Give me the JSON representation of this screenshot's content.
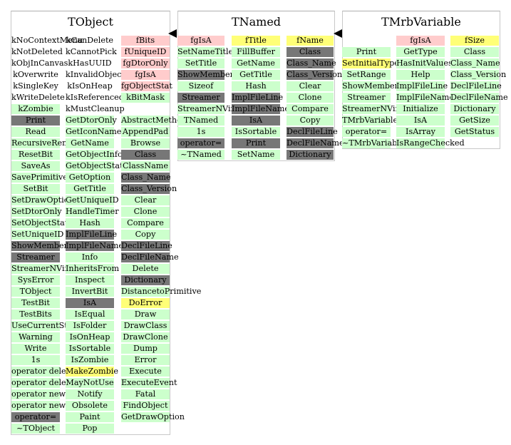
{
  "classes": [
    {
      "title": "TObject",
      "columns": [
        [
          {
            "t": "kNoContextMenu",
            "c": "w"
          },
          {
            "t": "kNotDeleted",
            "c": "w"
          },
          {
            "t": "kObjInCanvas",
            "c": "w"
          },
          {
            "t": "kOverwrite",
            "c": "w"
          },
          {
            "t": "kSingleKey",
            "c": "w"
          },
          {
            "t": "kWriteDelete",
            "c": "w"
          },
          {
            "t": "kZombie",
            "c": "p"
          },
          {
            "t": "Print",
            "c": "d"
          },
          {
            "t": "Read",
            "c": "p"
          },
          {
            "t": "RecursiveRemove",
            "c": "p"
          },
          {
            "t": "ResetBit",
            "c": "p"
          },
          {
            "t": "SaveAs",
            "c": "p"
          },
          {
            "t": "SavePrimitive",
            "c": "p"
          },
          {
            "t": "SetBit",
            "c": "p"
          },
          {
            "t": "SetDrawOption",
            "c": "p"
          },
          {
            "t": "SetDtorOnly",
            "c": "p"
          },
          {
            "t": "SetObjectStat",
            "c": "p"
          },
          {
            "t": "SetUniqueID",
            "c": "p"
          },
          {
            "t": "ShowMembers",
            "c": "d"
          },
          {
            "t": "Streamer",
            "c": "d"
          },
          {
            "t": "StreamerNVirtual",
            "c": "p"
          },
          {
            "t": "SysError",
            "c": "p"
          },
          {
            "t": "TObject",
            "c": "p"
          },
          {
            "t": "TestBit",
            "c": "p"
          },
          {
            "t": "TestBits",
            "c": "p"
          },
          {
            "t": "UseCurrentStyle",
            "c": "p"
          },
          {
            "t": "Warning",
            "c": "p"
          },
          {
            "t": "Write",
            "c": "p"
          },
          {
            "t": "1s",
            "c": "p"
          },
          {
            "t": "operator delete",
            "c": "p"
          },
          {
            "t": "operator delete[]",
            "c": "p"
          },
          {
            "t": "operator new",
            "c": "p"
          },
          {
            "t": "operator new[]",
            "c": "p"
          },
          {
            "t": "operator=",
            "c": "d"
          },
          {
            "t": "~TObject",
            "c": "p"
          }
        ],
        [
          {
            "t": "kCanDelete",
            "c": "w"
          },
          {
            "t": "kCannotPick",
            "c": "w"
          },
          {
            "t": "kHasUUID",
            "c": "w"
          },
          {
            "t": "kInvalidObject",
            "c": "w"
          },
          {
            "t": "kIsOnHeap",
            "c": "w"
          },
          {
            "t": "kIsReferenced",
            "c": "w"
          },
          {
            "t": "kMustCleanup",
            "c": "w"
          },
          {
            "t": "GetDtorOnly",
            "c": "p"
          },
          {
            "t": "GetIconName",
            "c": "p"
          },
          {
            "t": "GetName",
            "c": "p"
          },
          {
            "t": "GetObjectInfo",
            "c": "p"
          },
          {
            "t": "GetObjectStat",
            "c": "p"
          },
          {
            "t": "GetOption",
            "c": "p"
          },
          {
            "t": "GetTitle",
            "c": "p"
          },
          {
            "t": "GetUniqueID",
            "c": "p"
          },
          {
            "t": "HandleTimer",
            "c": "p"
          },
          {
            "t": "Hash",
            "c": "p"
          },
          {
            "t": "ImplFileLine",
            "c": "d"
          },
          {
            "t": "ImplFileName",
            "c": "d"
          },
          {
            "t": "Info",
            "c": "p"
          },
          {
            "t": "InheritsFrom",
            "c": "p"
          },
          {
            "t": "Inspect",
            "c": "p"
          },
          {
            "t": "InvertBit",
            "c": "p"
          },
          {
            "t": "IsA",
            "c": "d"
          },
          {
            "t": "IsEqual",
            "c": "p"
          },
          {
            "t": "IsFolder",
            "c": "p"
          },
          {
            "t": "IsOnHeap",
            "c": "p"
          },
          {
            "t": "IsSortable",
            "c": "p"
          },
          {
            "t": "IsZombie",
            "c": "p"
          },
          {
            "t": "MakeZombie",
            "c": "y"
          },
          {
            "t": "MayNotUse",
            "c": "p"
          },
          {
            "t": "Notify",
            "c": "p"
          },
          {
            "t": "Obsolete",
            "c": "p"
          },
          {
            "t": "Paint",
            "c": "p"
          },
          {
            "t": "Pop",
            "c": "p"
          }
        ],
        [
          {
            "t": "fBits",
            "c": "r"
          },
          {
            "t": "fUniqueID",
            "c": "r"
          },
          {
            "t": "fgDtorOnly",
            "c": "r"
          },
          {
            "t": "fgIsA",
            "c": "r"
          },
          {
            "t": "fgObjectStat",
            "c": "r"
          },
          {
            "t": "kBitMask",
            "c": "p"
          },
          {
            "t": "",
            "c": "w"
          },
          {
            "t": "AbstractMethod",
            "c": "p"
          },
          {
            "t": "AppendPad",
            "c": "p"
          },
          {
            "t": "Browse",
            "c": "p"
          },
          {
            "t": "Class",
            "c": "d"
          },
          {
            "t": "ClassName",
            "c": "p"
          },
          {
            "t": "Class_Name",
            "c": "d"
          },
          {
            "t": "Class_Version",
            "c": "d"
          },
          {
            "t": "Clear",
            "c": "p"
          },
          {
            "t": "Clone",
            "c": "p"
          },
          {
            "t": "Compare",
            "c": "p"
          },
          {
            "t": "Copy",
            "c": "p"
          },
          {
            "t": "DeclFileLine",
            "c": "d"
          },
          {
            "t": "DeclFileName",
            "c": "d"
          },
          {
            "t": "Delete",
            "c": "p"
          },
          {
            "t": "Dictionary",
            "c": "d"
          },
          {
            "t": "DistancetoPrimitive",
            "c": "p"
          },
          {
            "t": "DoError",
            "c": "y"
          },
          {
            "t": "Draw",
            "c": "p"
          },
          {
            "t": "DrawClass",
            "c": "p"
          },
          {
            "t": "DrawClone",
            "c": "p"
          },
          {
            "t": "Dump",
            "c": "p"
          },
          {
            "t": "Error",
            "c": "p"
          },
          {
            "t": "Execute",
            "c": "p"
          },
          {
            "t": "ExecuteEvent",
            "c": "p"
          },
          {
            "t": "Fatal",
            "c": "p"
          },
          {
            "t": "FindObject",
            "c": "p"
          },
          {
            "t": "GetDrawOption",
            "c": "p"
          }
        ]
      ]
    },
    {
      "title": "TNamed",
      "columns": [
        [
          {
            "t": "fgIsA",
            "c": "r"
          },
          {
            "t": "SetNameTitle",
            "c": "p"
          },
          {
            "t": "SetTitle",
            "c": "p"
          },
          {
            "t": "ShowMembers",
            "c": "d"
          },
          {
            "t": "Sizeof",
            "c": "p"
          },
          {
            "t": "Streamer",
            "c": "d"
          },
          {
            "t": "StreamerNVirtual",
            "c": "p"
          },
          {
            "t": "TNamed",
            "c": "p"
          },
          {
            "t": "1s",
            "c": "p"
          },
          {
            "t": "operator=",
            "c": "d"
          },
          {
            "t": "~TNamed",
            "c": "p"
          }
        ],
        [
          {
            "t": "fTitle",
            "c": "y"
          },
          {
            "t": "FillBuffer",
            "c": "p"
          },
          {
            "t": "GetName",
            "c": "p"
          },
          {
            "t": "GetTitle",
            "c": "p"
          },
          {
            "t": "Hash",
            "c": "p"
          },
          {
            "t": "ImplFileLine",
            "c": "d"
          },
          {
            "t": "ImplFileName",
            "c": "d"
          },
          {
            "t": "IsA",
            "c": "d"
          },
          {
            "t": "IsSortable",
            "c": "p"
          },
          {
            "t": "Print",
            "c": "d"
          },
          {
            "t": "SetName",
            "c": "p"
          }
        ],
        [
          {
            "t": "fName",
            "c": "y"
          },
          {
            "t": "Class",
            "c": "d"
          },
          {
            "t": "Class_Name",
            "c": "d"
          },
          {
            "t": "Class_Version",
            "c": "d"
          },
          {
            "t": "Clear",
            "c": "p"
          },
          {
            "t": "Clone",
            "c": "p"
          },
          {
            "t": "Compare",
            "c": "p"
          },
          {
            "t": "Copy",
            "c": "p"
          },
          {
            "t": "DeclFileLine",
            "c": "d"
          },
          {
            "t": "DeclFileName",
            "c": "d"
          },
          {
            "t": "Dictionary",
            "c": "d"
          }
        ]
      ]
    },
    {
      "title": "TMrbVariable",
      "columns": [
        [
          {
            "t": "",
            "c": "w"
          },
          {
            "t": "Print",
            "c": "p"
          },
          {
            "t": "SetInitialType",
            "c": "y"
          },
          {
            "t": "SetRange",
            "c": "p"
          },
          {
            "t": "ShowMembers",
            "c": "p"
          },
          {
            "t": "Streamer",
            "c": "p"
          },
          {
            "t": "StreamerNVirtual",
            "c": "p"
          },
          {
            "t": "TMrbVariable",
            "c": "p"
          },
          {
            "t": "operator=",
            "c": "p"
          },
          {
            "t": "~TMrbVariable",
            "c": "p"
          }
        ],
        [
          {
            "t": "fgIsA",
            "c": "r"
          },
          {
            "t": "GetType",
            "c": "p"
          },
          {
            "t": "HasInitValues",
            "c": "p"
          },
          {
            "t": "Help",
            "c": "p"
          },
          {
            "t": "ImplFileLine",
            "c": "p"
          },
          {
            "t": "ImplFileName",
            "c": "p"
          },
          {
            "t": "Initialize",
            "c": "p"
          },
          {
            "t": "IsA",
            "c": "p"
          },
          {
            "t": "IsArray",
            "c": "p"
          },
          {
            "t": "IsRangeChecked",
            "c": "p"
          }
        ],
        [
          {
            "t": "fSize",
            "c": "y"
          },
          {
            "t": "Class",
            "c": "p"
          },
          {
            "t": "Class_Name",
            "c": "p"
          },
          {
            "t": "Class_Version",
            "c": "p"
          },
          {
            "t": "DeclFileLine",
            "c": "p"
          },
          {
            "t": "DeclFileName",
            "c": "p"
          },
          {
            "t": "Dictionary",
            "c": "p"
          },
          {
            "t": "GetSize",
            "c": "p"
          },
          {
            "t": "GetStatus",
            "c": "p"
          }
        ]
      ]
    }
  ]
}
